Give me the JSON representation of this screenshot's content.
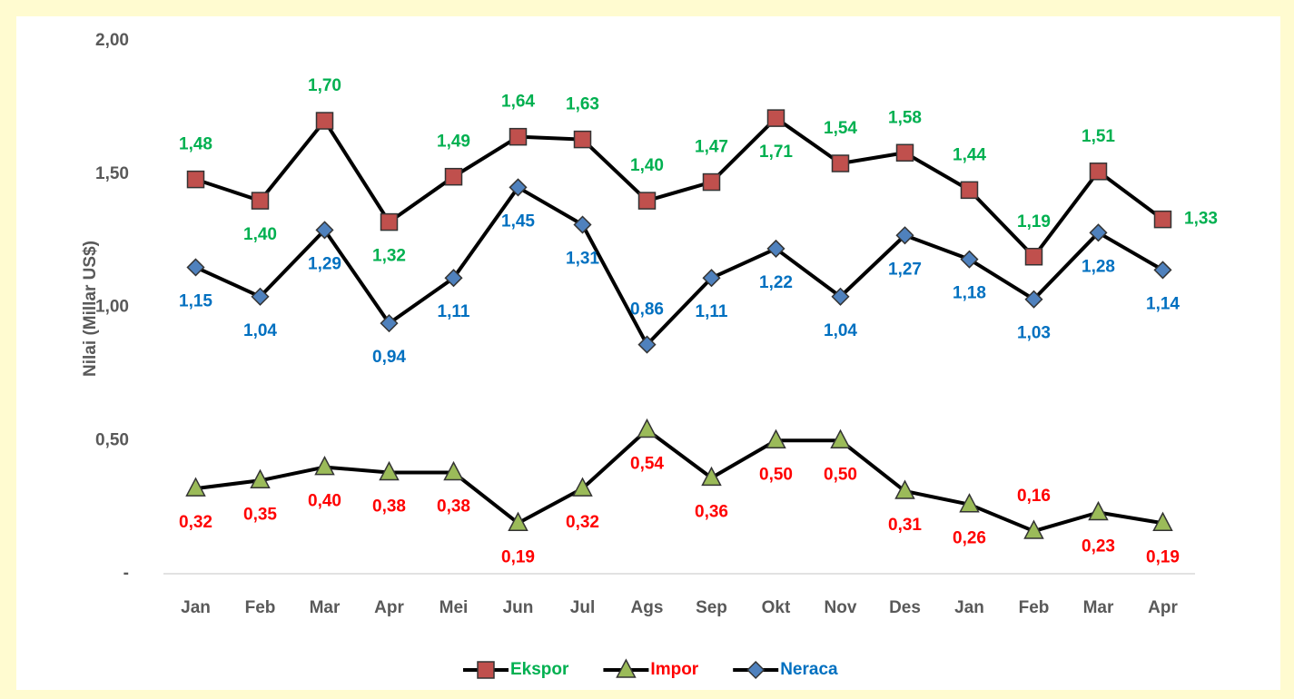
{
  "chart_data": {
    "type": "line",
    "y_label": "Nilai  (Millar US$)",
    "categories": [
      "Jan",
      "Feb",
      "Mar",
      "Apr",
      "Mei",
      "Jun",
      "Jul",
      "Ags",
      "Sep",
      "Okt",
      "Nov",
      "Des",
      "Jan",
      "Feb",
      "Mar",
      "Apr"
    ],
    "ylim": [
      0,
      2
    ],
    "yticks": [
      {
        "value": 0,
        "label": "-"
      },
      {
        "value": 0.5,
        "label": "0,50"
      },
      {
        "value": 1,
        "label": "1,00"
      },
      {
        "value": 1.5,
        "label": "1,50"
      },
      {
        "value": 2,
        "label": "2,00"
      }
    ],
    "grid": false,
    "legend": "bottom",
    "series": [
      {
        "name": "Ekspor",
        "color": "#000000",
        "marker": "square",
        "marker_color": "#c0504d",
        "label_color": "#00b050",
        "values": [
          1.48,
          1.4,
          1.7,
          1.32,
          1.49,
          1.64,
          1.63,
          1.4,
          1.47,
          1.71,
          1.54,
          1.58,
          1.44,
          1.19,
          1.51,
          1.33
        ],
        "value_labels": [
          "1,48",
          "1,40",
          "1,70",
          "1,32",
          "1,49",
          "1,64",
          "1,63",
          "1,40",
          "1,47",
          "1,71",
          "1,54",
          "1,58",
          "1,44",
          "1,19",
          "1,51",
          "1,33"
        ]
      },
      {
        "name": "Impor",
        "color": "#000000",
        "marker": "triangle",
        "marker_color": "#9bbb59",
        "label_color": "#ff0000",
        "values": [
          0.32,
          0.35,
          0.4,
          0.38,
          0.38,
          0.19,
          0.32,
          0.54,
          0.36,
          0.5,
          0.5,
          0.31,
          0.26,
          0.16,
          0.23,
          0.19
        ],
        "value_labels": [
          "0,32",
          "0,35",
          "0,40",
          "0,38",
          "0,38",
          "0,19",
          "0,32",
          "0,54",
          "0,36",
          "0,50",
          "0,50",
          "0,31",
          "0,26",
          "0,16",
          "0,23",
          "0,19"
        ]
      },
      {
        "name": "Neraca",
        "color": "#000000",
        "marker": "diamond",
        "marker_color": "#4f81bd",
        "label_color": "#0070c0",
        "values": [
          1.15,
          1.04,
          1.29,
          0.94,
          1.11,
          1.45,
          1.31,
          0.86,
          1.11,
          1.22,
          1.04,
          1.27,
          1.18,
          1.03,
          1.28,
          1.14
        ],
        "value_labels": [
          "1,15",
          "1,04",
          "1,29",
          "0,94",
          "1,11",
          "1,45",
          "1,31",
          "0,86",
          "1,11",
          "1,22",
          "1,04",
          "1,27",
          "1,18",
          "1,03",
          "1,28",
          "1,14"
        ]
      }
    ]
  }
}
